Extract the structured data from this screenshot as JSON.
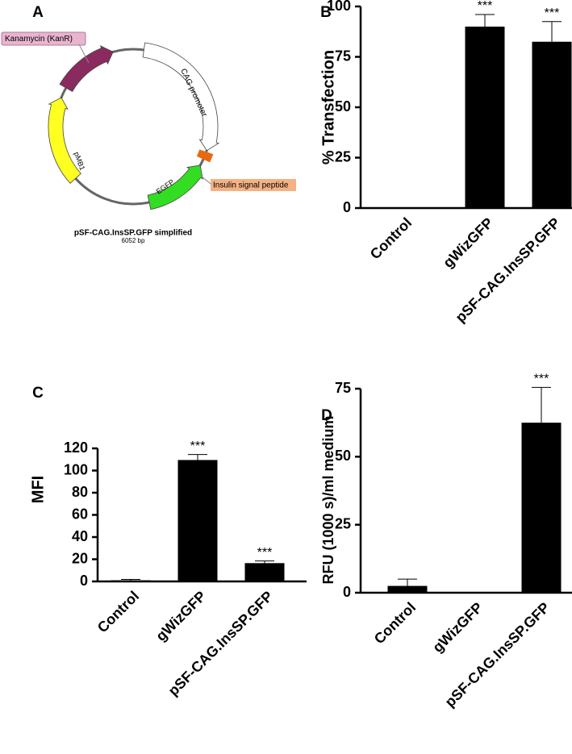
{
  "plasmid": {
    "panel_label": "A",
    "name": "pSF-CAG.InsSP.GFP  simplified",
    "size": "6052 bp",
    "features": {
      "kanamycin": "Kanamycin (KanR)",
      "cag": "CAG promoter",
      "insulin": "Insulin signal peptide",
      "egfp": "EGFP",
      "pmb1": "pMB1"
    }
  },
  "chart_data": [
    {
      "type": "bar",
      "panel_label": "B",
      "y_label": "% Transfection",
      "categories": [
        "Control",
        "gWizGFP",
        "pSF-CAG.InsSP.GFP"
      ],
      "values": [
        0,
        90,
        82.5
      ],
      "errors": [
        null,
        6,
        10
      ],
      "significance": [
        null,
        "***",
        "***"
      ],
      "color": "#000000",
      "ylim": [
        0,
        100
      ],
      "yticks": [
        0,
        25,
        50,
        75,
        100
      ]
    },
    {
      "type": "bar",
      "panel_label": "C",
      "y_label": "MFI",
      "categories": [
        "Control",
        "gWizGFP",
        "pSF-CAG.InsSP.GFP"
      ],
      "values": [
        1,
        109.5,
        16.5
      ],
      "errors": [
        0.8,
        5,
        2
      ],
      "significance": [
        null,
        "***",
        "***"
      ],
      "color": "#000000",
      "ylim": [
        0,
        120
      ],
      "yticks": [
        0,
        20,
        40,
        60,
        80,
        100,
        120
      ]
    },
    {
      "type": "bar",
      "panel_label": "D",
      "y_label": "RFU (1000 s)/ml medium",
      "categories": [
        "Control",
        "gWizGFP",
        "pSF-CAG.InsSP.GFP"
      ],
      "values": [
        2.5,
        0,
        62.5
      ],
      "errors": [
        2.5,
        null,
        13
      ],
      "significance": [
        null,
        null,
        "***"
      ],
      "color": "#000000",
      "ylim": [
        0,
        75
      ],
      "yticks": [
        0,
        25,
        50,
        75
      ]
    }
  ]
}
